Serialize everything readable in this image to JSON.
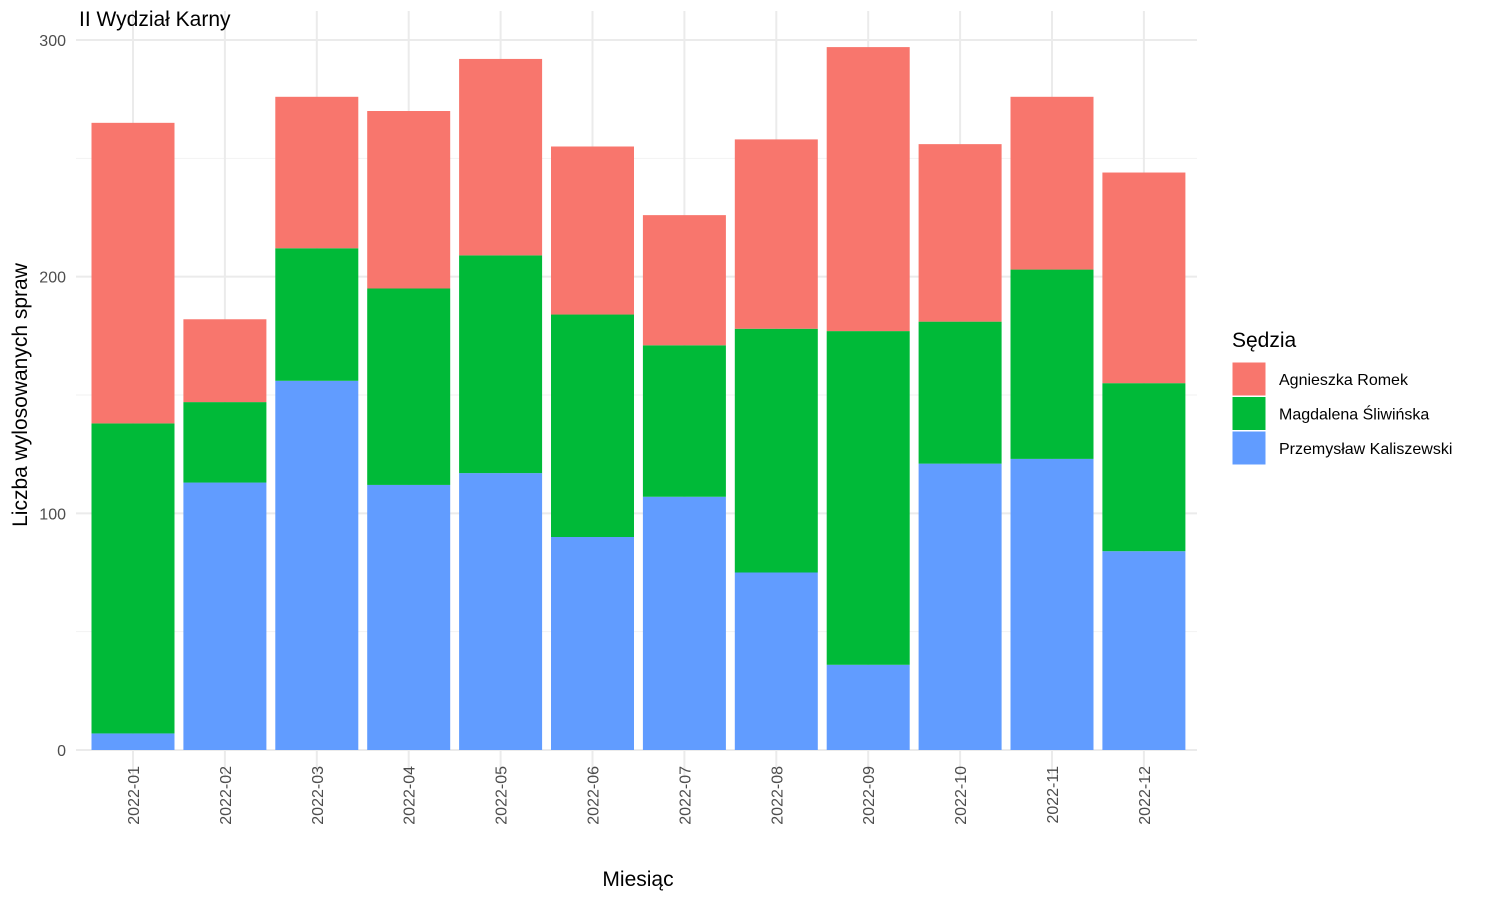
{
  "chart_data": {
    "type": "bar",
    "stacked": true,
    "title": "II Wydział Karny",
    "xlabel": "Miesiąc",
    "ylabel": "Liczba wylosowanych spraw",
    "ylim": [
      0,
      300
    ],
    "yticks": [
      0,
      100,
      200,
      300
    ],
    "grid": true,
    "legend": {
      "title": "Sędzia",
      "position": "right"
    },
    "categories": [
      "2022-01",
      "2022-02",
      "2022-03",
      "2022-04",
      "2022-05",
      "2022-06",
      "2022-07",
      "2022-08",
      "2022-09",
      "2022-10",
      "2022-11",
      "2022-12"
    ],
    "series": [
      {
        "name": "Agnieszka Romek",
        "color": "#F8766D",
        "values": [
          127,
          35,
          64,
          75,
          83,
          71,
          55,
          80,
          120,
          75,
          73,
          89
        ]
      },
      {
        "name": "Magdalena Śliwińska",
        "color": "#00BA38",
        "values": [
          131,
          34,
          56,
          83,
          92,
          94,
          64,
          103,
          141,
          60,
          80,
          71
        ]
      },
      {
        "name": "Przemysław Kaliszewski",
        "color": "#619CFF",
        "values": [
          7,
          113,
          156,
          112,
          117,
          90,
          107,
          75,
          36,
          121,
          123,
          84
        ]
      }
    ]
  }
}
